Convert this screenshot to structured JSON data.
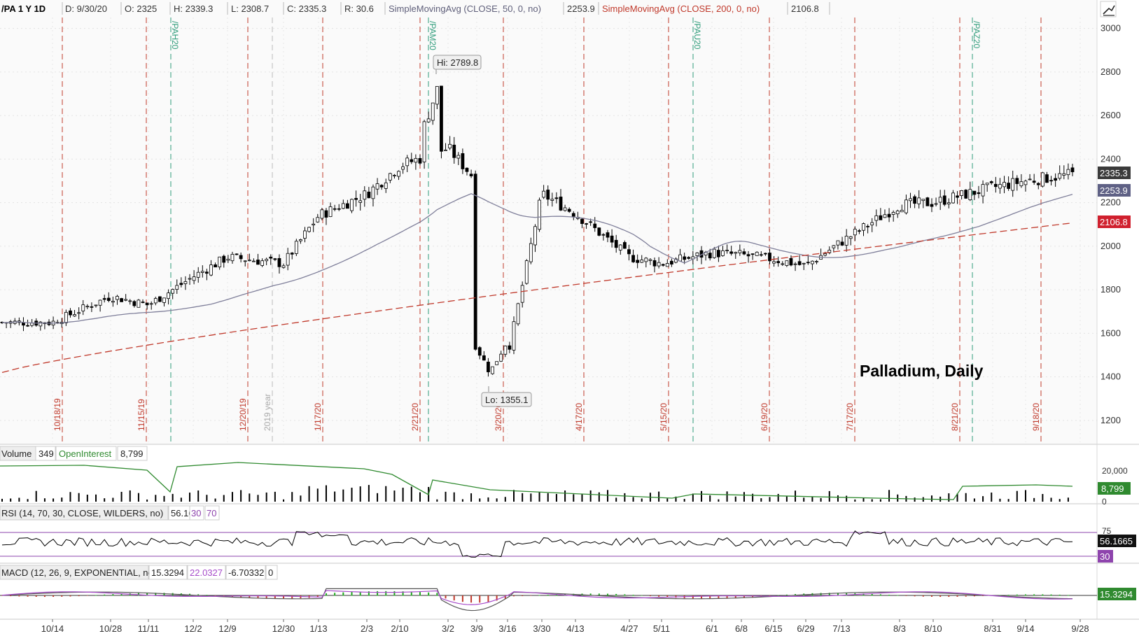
{
  "header": {
    "symbol": "/PA 1 Y 1D",
    "date": "D: 9/30/20",
    "open": "O: 2325",
    "high": "H: 2339.3",
    "low": "L: 2308.7",
    "close": "C: 2335.3",
    "range": "R: 30.6",
    "sma50_label": "SimpleMovingAvg (CLOSE, 50, 0, no)",
    "sma50_value": "2253.9",
    "sma200_label": "SimpleMovingAvg (CLOSE, 200, 0, no)",
    "sma200_value": "2106.8"
  },
  "annotation": "Palladium, Daily",
  "colors": {
    "up": "#000000",
    "sma50": "#7f7f9a",
    "sma200": "#c0392b",
    "red_marker": "#c0392b",
    "green_marker": "#2e9c7a",
    "oi_line": "#2f8a2f",
    "rsi_line": "#000000",
    "rsi_band": "#8e44ad",
    "macd_line": "#555555",
    "macd_signal": "#a64ac9",
    "hist_pos": "#1fa81f",
    "hist_neg": "#c0392b"
  },
  "x_labels": [
    "10/14",
    "10/28",
    "11/11",
    "12/2",
    "12/9",
    "12/30",
    "1/13",
    "2/3",
    "2/10",
    "3/2",
    "3/9",
    "3/16",
    "3/30",
    "4/13",
    "4/27",
    "5/11",
    "6/1",
    "6/8",
    "6/15",
    "6/29",
    "7/13",
    "8/3",
    "8/10",
    "8/31",
    "9/14",
    "9/28"
  ],
  "vertical_markers": [
    {
      "label": "10/18/19",
      "color": "red"
    },
    {
      "label": "11/15/19",
      "color": "red"
    },
    {
      "label": "/PAH20",
      "color": "green"
    },
    {
      "label": "12/20/19",
      "color": "red"
    },
    {
      "label": "2019 year",
      "color": "gray"
    },
    {
      "label": "1/17/20",
      "color": "red"
    },
    {
      "label": "2/21/20",
      "color": "red"
    },
    {
      "label": "/PAM20",
      "color": "green"
    },
    {
      "label": "3/20/20",
      "color": "red"
    },
    {
      "label": "4/17/20",
      "color": "red"
    },
    {
      "label": "5/15/20",
      "color": "red"
    },
    {
      "label": "/PAU20",
      "color": "green"
    },
    {
      "label": "6/19/20",
      "color": "red"
    },
    {
      "label": "7/17/20",
      "color": "red"
    },
    {
      "label": "8/21/20",
      "color": "red"
    },
    {
      "label": "/PAZ20",
      "color": "green"
    },
    {
      "label": "9/18/20",
      "color": "red"
    }
  ],
  "extremes": {
    "hi_label": "Hi: 2789.8",
    "lo_label": "Lo: 1355.1"
  },
  "right_badges": {
    "close": "2335.3",
    "sma50": "2253.9",
    "sma200": "2106.8",
    "oi": "8,799",
    "rsi": "56.1665",
    "rsi_low": "30",
    "macd": "15.3294"
  },
  "volume_panel": {
    "title": "Volume",
    "volume": "349",
    "oi_label": "OpenInterest",
    "oi_value": "8,799",
    "axis_labels": [
      "20,000",
      "0"
    ]
  },
  "rsi_panel": {
    "title": "RSI (14, 70, 30, CLOSE, WILDERS, no)",
    "value": "56.1665",
    "lower": "30",
    "upper": "70",
    "axis_labels": [
      "75",
      "25"
    ]
  },
  "macd_panel": {
    "title": "MACD (12, 26, 9, EXPONENTIAL, no)",
    "macd": "15.3294",
    "signal": "22.0327",
    "diff": "-6.70332",
    "zero": "0"
  },
  "chart_data": {
    "type": "candlestick",
    "y_axis_ticks": [
      1200,
      1400,
      1600,
      1800,
      2000,
      2200,
      2400,
      2600,
      2800,
      3000
    ],
    "ylim": [
      1100,
      3050
    ],
    "last_ohlc": {
      "date": "9/30/20",
      "open": 2325,
      "high": 2339.3,
      "low": 2308.7,
      "close": 2335.3
    },
    "high": 2789.8,
    "low": 1355.1,
    "series": [
      {
        "name": "SimpleMovingAvg (CLOSE, 50, 0, no)",
        "last": 2253.9
      },
      {
        "name": "SimpleMovingAvg (CLOSE, 200, 0, no)",
        "last": 2106.8
      }
    ],
    "approx_close_path": [
      {
        "date": "10/14",
        "close": 1650
      },
      {
        "date": "10/28",
        "close": 1770
      },
      {
        "date": "11/11",
        "close": 1730
      },
      {
        "date": "12/2",
        "close": 1860
      },
      {
        "date": "12/9",
        "close": 1950
      },
      {
        "date": "12/30",
        "close": 1920
      },
      {
        "date": "1/13",
        "close": 2140
      },
      {
        "date": "2/3",
        "close": 2240
      },
      {
        "date": "2/10",
        "close": 2370
      },
      {
        "date": "3/2",
        "close": 2450
      },
      {
        "date": "3/9",
        "close": 2300
      },
      {
        "date": "3/16",
        "close": 1500
      },
      {
        "date": "3/30",
        "close": 2240
      },
      {
        "date": "4/13",
        "close": 2150
      },
      {
        "date": "4/27",
        "close": 1950
      },
      {
        "date": "5/11",
        "close": 1920
      },
      {
        "date": "6/1",
        "close": 1970
      },
      {
        "date": "6/8",
        "close": 1960
      },
      {
        "date": "6/15",
        "close": 1940
      },
      {
        "date": "6/29",
        "close": 1910
      },
      {
        "date": "7/13",
        "close": 2020
      },
      {
        "date": "8/3",
        "close": 2190
      },
      {
        "date": "8/10",
        "close": 2200
      },
      {
        "date": "8/31",
        "close": 2270
      },
      {
        "date": "9/14",
        "close": 2300
      },
      {
        "date": "9/28",
        "close": 2335
      }
    ]
  }
}
